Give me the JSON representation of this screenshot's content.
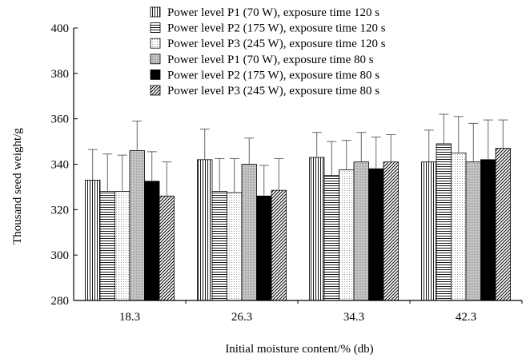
{
  "chart_data": {
    "type": "bar",
    "title": "",
    "xlabel": "Initial moisture content/% (db)",
    "ylabel": "Thousand seed weight/g",
    "ylim": [
      280,
      400
    ],
    "yticks": [
      280,
      300,
      320,
      340,
      360,
      380,
      400
    ],
    "grid": false,
    "legend_position": "top-center",
    "categories": [
      "18.3",
      "26.3",
      "34.3",
      "42.3"
    ],
    "series": [
      {
        "name": "Power level P1 (70 W), exposure time 120 s",
        "pattern": "vertical-lines",
        "values": [
          333,
          342,
          343,
          341
        ],
        "errors": [
          13.5,
          13.5,
          11,
          14
        ]
      },
      {
        "name": "Power level P2 (175 W), exposure time 120 s",
        "pattern": "horizontal-lines",
        "values": [
          328,
          328,
          335,
          349
        ],
        "errors": [
          16.5,
          14.5,
          15,
          13
        ]
      },
      {
        "name": "Power level P3 (245 W), exposure time 120 s",
        "pattern": "dots",
        "values": [
          328,
          327.5,
          337.5,
          345
        ],
        "errors": [
          16,
          15,
          13,
          16
        ]
      },
      {
        "name": "Power level P1 (70 W), exposure time 80 s",
        "pattern": "light-gray",
        "values": [
          346,
          340,
          341,
          341
        ],
        "errors": [
          13,
          11.5,
          13,
          17
        ]
      },
      {
        "name": "Power level P2 (175 W), exposure time 80 s",
        "pattern": "solid-black",
        "values": [
          332.5,
          326,
          338,
          342
        ],
        "errors": [
          13,
          13.5,
          14,
          17.5
        ]
      },
      {
        "name": "Power level P3 (245 W), exposure time 80 s",
        "pattern": "diagonal-lines",
        "values": [
          326,
          328.5,
          341,
          347
        ],
        "errors": [
          15,
          14,
          12,
          12.5
        ]
      }
    ]
  }
}
